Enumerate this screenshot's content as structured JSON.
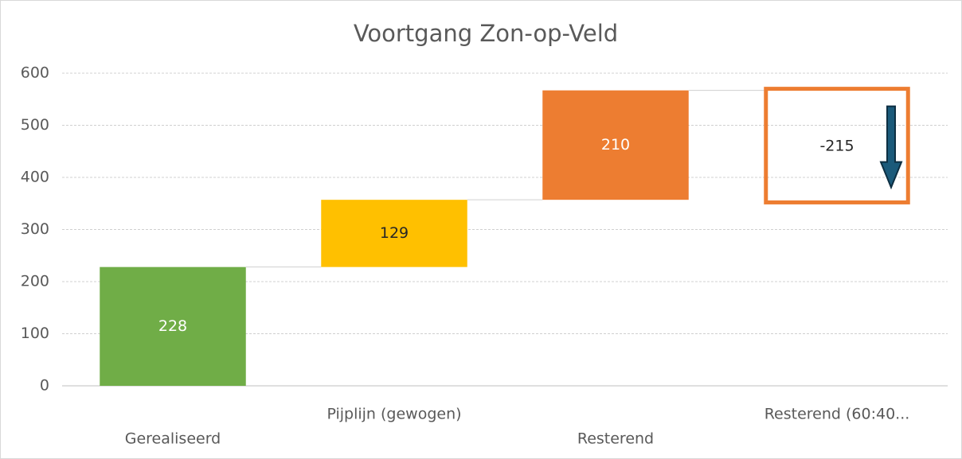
{
  "chart_data": {
    "type": "waterfall",
    "title": "Voortgang Zon-op-Veld",
    "categories": [
      "Gerealiseerd",
      "Pijplijn (gewogen)",
      "Resterend",
      "Resterend (60:40..."
    ],
    "values": [
      228,
      129,
      210,
      -215
    ],
    "colors": [
      "#70ad47",
      "#ffc000",
      "#ed7d31",
      "#ed7d31"
    ],
    "ylim": [
      0,
      600
    ],
    "yticks": [
      0,
      100,
      200,
      300,
      400,
      500,
      600
    ],
    "grid": true
  }
}
